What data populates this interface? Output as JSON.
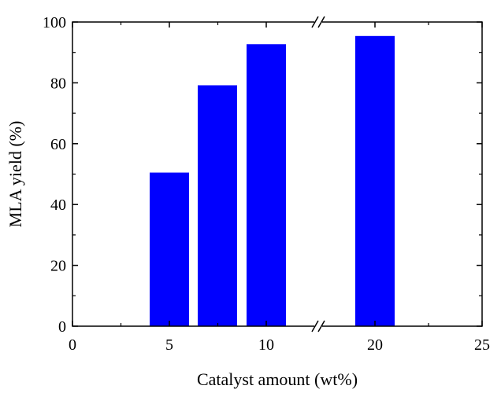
{
  "chart_data": {
    "type": "bar",
    "title": "",
    "xlabel": "Catalyst amount (wt%)",
    "ylabel": "MLA yield (%)",
    "xlim": [
      0,
      25
    ],
    "ylim": [
      0,
      100
    ],
    "x_broken_axis": true,
    "x_break_between": [
      10,
      20
    ],
    "grid": false,
    "legend": "none",
    "bar_color": "#0000ff",
    "xticks": [
      {
        "value": 0,
        "label": "0"
      },
      {
        "value": 5,
        "label": "5"
      },
      {
        "value": 10,
        "label": "10"
      },
      {
        "value": 20,
        "label": "20"
      },
      {
        "value": 25,
        "label": "25"
      }
    ],
    "yticks": [
      {
        "value": 0,
        "label": "0"
      },
      {
        "value": 20,
        "label": "20"
      },
      {
        "value": 40,
        "label": "40"
      },
      {
        "value": 60,
        "label": "60"
      },
      {
        "value": 80,
        "label": "80"
      },
      {
        "value": 100,
        "label": "100"
      }
    ],
    "bars": [
      {
        "x": 5,
        "value": 50.5
      },
      {
        "x": 7.5,
        "value": 79.2
      },
      {
        "x": 10,
        "value": 92.7
      },
      {
        "x": 20,
        "value": 95.4
      }
    ]
  }
}
